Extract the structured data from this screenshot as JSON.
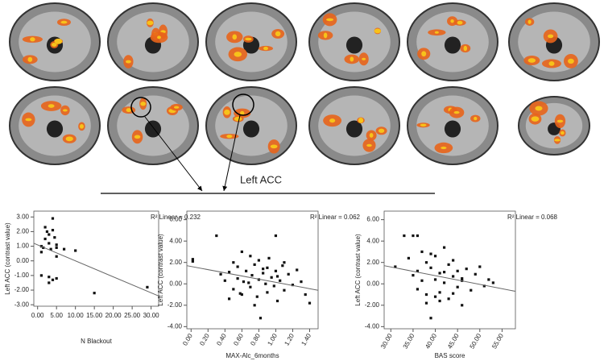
{
  "label": "Left ACC",
  "chart_data": [
    {
      "type": "scatter",
      "y_label": "Left ACC (contrast value)",
      "x_label": "N Blackout",
      "annotation": "R² Linear = 0.232",
      "xlim": [
        -1,
        32
      ],
      "ylim": [
        -3.1,
        3.4
      ],
      "xticks": [
        {
          "value": 0,
          "label": "0.00"
        },
        {
          "value": 5,
          "label": "5.00"
        },
        {
          "value": 10,
          "label": "10.00"
        },
        {
          "value": 15,
          "label": "15.00"
        },
        {
          "value": 20,
          "label": "20.00"
        },
        {
          "value": 25,
          "label": "25.00"
        },
        {
          "value": 30,
          "label": "30.00"
        }
      ],
      "yticks": [
        {
          "value": -3,
          "label": "-3.00"
        },
        {
          "value": -2,
          "label": "-2.00"
        },
        {
          "value": -1,
          "label": "-1.00"
        },
        {
          "value": 0,
          "label": "0.00"
        },
        {
          "value": 1,
          "label": "1.00"
        },
        {
          "value": 2,
          "label": "2.00"
        },
        {
          "value": 3,
          "label": "3.00"
        }
      ],
      "color": "#111111",
      "x": [
        1,
        1,
        1.5,
        2,
        2,
        2.5,
        3,
        3,
        3.5,
        4,
        4,
        4.5,
        5,
        5,
        3,
        4,
        5,
        1,
        3,
        7,
        10,
        15,
        29,
        5
      ],
      "values": [
        1,
        0.6,
        0.9,
        1.5,
        2.3,
        2,
        1.8,
        1.2,
        0.8,
        2.9,
        2.1,
        1.6,
        1.1,
        0.3,
        -1.1,
        -1.3,
        -1.2,
        -1,
        -1.5,
        0.8,
        0.7,
        -2.2,
        -1.8,
        0.9
      ],
      "fit_x": [
        -1,
        32
      ],
      "fit_y": [
        1.2,
        -2.4
      ]
    },
    {
      "type": "scatter",
      "y_label": "Left ACC (contrast value)",
      "x_label": "MAX-Alc_6months",
      "annotation": "R² Linear = 0.062",
      "xlim": [
        -0.05,
        1.5
      ],
      "ylim": [
        -4.2,
        6.8
      ],
      "xticks": [
        {
          "value": 0,
          "label": "0.00"
        },
        {
          "value": 0.2,
          "label": "0.20"
        },
        {
          "value": 0.4,
          "label": "0.40"
        },
        {
          "value": 0.6,
          "label": "0.60"
        },
        {
          "value": 0.8,
          "label": "0.80"
        },
        {
          "value": 1,
          "label": "1.00"
        },
        {
          "value": 1.2,
          "label": "1.20"
        },
        {
          "value": 1.4,
          "label": "1.40"
        }
      ],
      "yticks": [
        {
          "value": -4,
          "label": "-4.00"
        },
        {
          "value": -2,
          "label": "-2.00"
        },
        {
          "value": 0,
          "label": "0.00"
        },
        {
          "value": 2,
          "label": "2.00"
        },
        {
          "value": 4,
          "label": "4.00"
        },
        {
          "value": 6,
          "label": "6.00"
        }
      ],
      "color": "#111111",
      "x": [
        0.02,
        0.02,
        0.3,
        0.35,
        0.4,
        0.45,
        0.5,
        0.5,
        0.55,
        0.55,
        0.6,
        0.6,
        0.62,
        0.65,
        0.7,
        0.7,
        0.72,
        0.75,
        0.78,
        0.8,
        0.8,
        0.82,
        0.85,
        0.88,
        0.9,
        0.9,
        0.92,
        0.95,
        0.98,
        1.0,
        1.0,
        1.02,
        1.05,
        1.08,
        1.1,
        1.1,
        1.15,
        1.2,
        1.25,
        1.3,
        1.35,
        1.4,
        0.45,
        0.58,
        0.68,
        0.85,
        1.02,
        0.75
      ],
      "values": [
        2.3,
        2.1,
        4.5,
        0.9,
        0.3,
        1.1,
        2.0,
        -0.5,
        0.5,
        1.6,
        3.0,
        -1.0,
        0.2,
        1.2,
        2.6,
        -0.3,
        0.8,
        1.8,
        -1.2,
        0.4,
        2.2,
        -3.2,
        1.0,
        0.0,
        1.5,
        -0.8,
        2.4,
        0.6,
        -0.2,
        4.5,
        1.2,
        -1.6,
        0.3,
        1.7,
        -0.6,
        2.0,
        0.9,
        -0.1,
        1.3,
        0.2,
        -1.0,
        -1.8,
        -1.4,
        -0.9,
        0.1,
        1.4,
        0.7,
        -2.0
      ],
      "fit_x": [
        -0.05,
        1.5
      ],
      "fit_y": [
        1.7,
        -0.6
      ]
    },
    {
      "type": "scatter",
      "y_label": "Left ACC (contrast value)",
      "x_label": "BAS score",
      "annotation": "R² Linear = 0.068",
      "xlim": [
        28.5,
        58
      ],
      "ylim": [
        -4.2,
        6.8
      ],
      "xticks": [
        {
          "value": 30,
          "label": "30.00"
        },
        {
          "value": 35,
          "label": "35.00"
        },
        {
          "value": 40,
          "label": "40.00"
        },
        {
          "value": 45,
          "label": "45.00"
        },
        {
          "value": 50,
          "label": "50.00"
        },
        {
          "value": 55,
          "label": "55.00"
        }
      ],
      "yticks": [
        {
          "value": -4,
          "label": "-4.00"
        },
        {
          "value": -2,
          "label": "-2.00"
        },
        {
          "value": 0,
          "label": "0.00"
        },
        {
          "value": 2,
          "label": "2.00"
        },
        {
          "value": 4,
          "label": "4.00"
        },
        {
          "value": 6,
          "label": "6.00"
        }
      ],
      "color": "#111111",
      "x": [
        31,
        33,
        34,
        35,
        35,
        36,
        36,
        37,
        37,
        38,
        38,
        39,
        39,
        40,
        40,
        41,
        41,
        42,
        42,
        43,
        43,
        44,
        44,
        45,
        45,
        46,
        46,
        47,
        48,
        49,
        50,
        51,
        52,
        53,
        36,
        38,
        40,
        42,
        44,
        46,
        39,
        41
      ],
      "values": [
        1.6,
        4.5,
        2.4,
        4.5,
        0.8,
        1.2,
        -0.5,
        3.0,
        0.3,
        2.0,
        -1.0,
        1.5,
        -3.2,
        2.6,
        0.4,
        1.0,
        -0.8,
        3.4,
        0.1,
        1.8,
        -1.4,
        0.7,
        2.2,
        -0.3,
        1.2,
        -2.0,
        0.5,
        1.4,
        -0.6,
        0.9,
        1.6,
        -0.2,
        0.4,
        0.1,
        4.5,
        -1.8,
        -1.2,
        1.1,
        -0.9,
        0.3,
        2.8,
        -1.6
      ],
      "fit_x": [
        28.5,
        58
      ],
      "fit_y": [
        1.7,
        -0.7
      ]
    }
  ]
}
